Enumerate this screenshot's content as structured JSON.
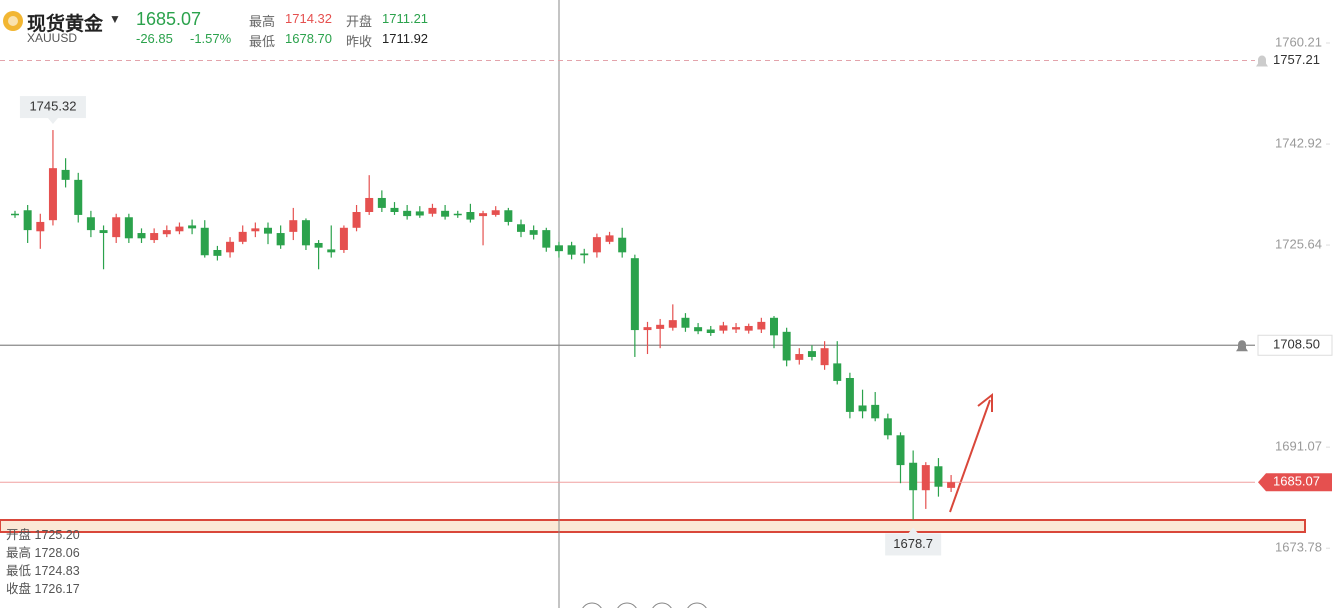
{
  "header": {
    "name": "现货黄金",
    "symbol": "XAUUSD",
    "price": "1685.07",
    "change": "-26.85",
    "change_pct": "-1.57%",
    "stats": [
      {
        "label": "最高",
        "value": "1714.32"
      },
      {
        "label": "开盘",
        "value": "1711.21"
      },
      {
        "label": "最低",
        "value": "1678.70"
      },
      {
        "label": "昨收",
        "value": "1711.92"
      }
    ]
  },
  "ohlc_info": [
    {
      "label": "开盘",
      "value": "1725.20"
    },
    {
      "label": "最高",
      "value": "1728.06"
    },
    {
      "label": "最低",
      "value": "1724.83"
    },
    {
      "label": "收盘",
      "value": "1726.17"
    }
  ],
  "chart_data": {
    "type": "candlestick",
    "up_color": "#e5504f",
    "down_color": "#2ba24c",
    "grid": false,
    "ylim": [
      1663.55,
      1767.57
    ],
    "yticks": [
      1760.21,
      1742.92,
      1725.64,
      1691.07,
      1673.78
    ],
    "open": [
      1731.0,
      1731.6,
      1728.0,
      1729.9,
      1738.5,
      1736.8,
      1730.4,
      1728.2,
      1727.0,
      1730.4,
      1727.7,
      1726.5,
      1727.5,
      1728.0,
      1729.0,
      1728.6,
      1724.8,
      1724.4,
      1726.2,
      1728.0,
      1728.6,
      1727.7,
      1727.9,
      1729.9,
      1726.0,
      1724.9,
      1724.8,
      1728.6,
      1731.3,
      1733.7,
      1732.0,
      1731.5,
      1731.4,
      1731.0,
      1731.5,
      1731.0,
      1731.3,
      1730.6,
      1730.8,
      1731.6,
      1729.2,
      1728.2,
      1728.2,
      1725.6,
      1725.6,
      1724.2,
      1724.4,
      1726.2,
      1726.9,
      1723.4,
      1711.1,
      1711.3,
      1711.5,
      1713.2,
      1711.6,
      1711.2,
      1711.0,
      1711.2,
      1711.0,
      1711.2,
      1713.2,
      1710.8,
      1706.0,
      1707.5,
      1705.1,
      1705.4,
      1702.9,
      1698.2,
      1698.3,
      1696.0,
      1693.1,
      1688.4,
      1683.7,
      1687.8,
      1684.1
    ],
    "high": [
      1731.5,
      1732.5,
      1731.0,
      1745.32,
      1740.5,
      1738.0,
      1731.5,
      1729.0,
      1731.0,
      1731.0,
      1728.5,
      1728.5,
      1729.0,
      1729.5,
      1730.0,
      1729.9,
      1725.5,
      1727.0,
      1729.0,
      1729.5,
      1729.5,
      1729.0,
      1732.0,
      1730.2,
      1726.5,
      1729.0,
      1729.0,
      1732.5,
      1737.6,
      1735.0,
      1733.0,
      1732.5,
      1732.3,
      1732.7,
      1732.5,
      1731.5,
      1732.7,
      1731.5,
      1732.3,
      1732.0,
      1730.0,
      1729.0,
      1728.6,
      1726.2,
      1726.2,
      1725.0,
      1727.6,
      1727.9,
      1728.6,
      1724.0,
      1712.5,
      1713.0,
      1715.5,
      1714.0,
      1712.3,
      1711.8,
      1712.5,
      1712.3,
      1712.2,
      1713.2,
      1713.5,
      1711.5,
      1708.0,
      1708.5,
      1709.2,
      1709.2,
      1703.8,
      1700.9,
      1700.5,
      1696.8,
      1693.6,
      1690.5,
      1688.5,
      1689.2,
      1686.3
    ],
    "low": [
      1730.3,
      1726.0,
      1725.0,
      1729.0,
      1735.5,
      1729.5,
      1727.0,
      1721.5,
      1726.0,
      1726.0,
      1726.0,
      1726.0,
      1727.0,
      1727.5,
      1727.5,
      1723.5,
      1723.0,
      1723.5,
      1725.8,
      1727.0,
      1725.8,
      1725.0,
      1726.5,
      1724.8,
      1721.5,
      1723.5,
      1724.3,
      1728.0,
      1730.8,
      1731.3,
      1730.8,
      1730.0,
      1730.3,
      1730.5,
      1730.0,
      1730.3,
      1729.5,
      1725.6,
      1730.5,
      1729.0,
      1727.0,
      1726.6,
      1724.5,
      1723.5,
      1723.2,
      1722.5,
      1723.5,
      1725.8,
      1723.5,
      1706.5,
      1707.0,
      1708.0,
      1711.0,
      1710.8,
      1710.4,
      1710.1,
      1710.5,
      1710.6,
      1710.5,
      1710.6,
      1708.0,
      1704.9,
      1705.2,
      1705.9,
      1704.3,
      1701.8,
      1696.0,
      1696.0,
      1695.5,
      1692.4,
      1684.9,
      1678.7,
      1680.5,
      1682.6,
      1683.4
    ],
    "close": [
      1730.8,
      1728.2,
      1729.6,
      1738.8,
      1736.8,
      1730.8,
      1728.2,
      1727.7,
      1730.4,
      1726.8,
      1726.8,
      1727.7,
      1728.2,
      1728.8,
      1728.5,
      1723.9,
      1723.8,
      1726.2,
      1727.9,
      1728.5,
      1727.6,
      1725.6,
      1729.9,
      1725.6,
      1725.2,
      1724.4,
      1728.6,
      1731.3,
      1733.7,
      1732.0,
      1731.3,
      1730.6,
      1730.7,
      1732.0,
      1730.5,
      1730.8,
      1730.0,
      1731.1,
      1731.6,
      1729.6,
      1727.9,
      1727.4,
      1725.2,
      1724.6,
      1724.0,
      1723.9,
      1727.0,
      1727.3,
      1724.4,
      1711.1,
      1711.6,
      1712.0,
      1712.8,
      1711.5,
      1710.9,
      1710.6,
      1711.9,
      1711.6,
      1711.8,
      1712.5,
      1710.2,
      1705.9,
      1707.0,
      1706.5,
      1708.0,
      1702.4,
      1697.1,
      1697.2,
      1696.0,
      1693.1,
      1688.0,
      1683.7,
      1688.0,
      1684.3,
      1685.07
    ],
    "high_label": 1745.32,
    "low_label": 1678.7,
    "reference_lines": [
      {
        "value": 1757.21,
        "color": "#e3a3ab",
        "dashed": true
      },
      {
        "value": 1708.5,
        "label": "1708.50",
        "color": "#8a8a8a",
        "dashed": false
      },
      {
        "value": 1685.07,
        "color": "#f0a0a0",
        "dashed": false
      }
    ]
  }
}
